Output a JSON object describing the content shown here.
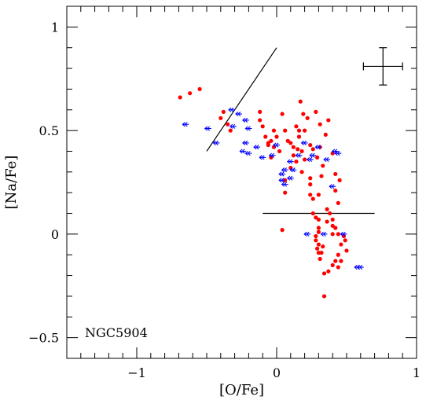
{
  "chart_data": {
    "type": "scatter",
    "annotation": "NGC5904",
    "xlabel": "[O/Fe]",
    "ylabel": "[Na/Fe]",
    "xlim": [
      -1.5,
      1.0
    ],
    "ylim": [
      -0.6,
      1.1
    ],
    "x_ticks": [
      {
        "value": -1,
        "label": "−1"
      },
      {
        "value": 0,
        "label": "0"
      },
      {
        "value": 1,
        "label": "1"
      }
    ],
    "y_ticks": [
      {
        "value": -0.5,
        "label": "−0.5"
      },
      {
        "value": 0,
        "label": "0"
      },
      {
        "value": 0.5,
        "label": "0.5"
      },
      {
        "value": 1,
        "label": "1"
      }
    ],
    "x_minor_step": 0.1,
    "y_minor_step": 0.1,
    "grid": false,
    "colors": {
      "detections": "#ff0000",
      "upper_limits": "#0000ff",
      "lines": "#000000"
    },
    "series": [
      {
        "marker": "filled-circle",
        "color": "#ff0000",
        "points": [
          [
            -0.69,
            0.66
          ],
          [
            -0.62,
            0.68
          ],
          [
            -0.55,
            0.7
          ],
          [
            -0.4,
            0.56
          ],
          [
            -0.38,
            0.59
          ],
          [
            -0.35,
            0.53
          ],
          [
            -0.33,
            0.5
          ],
          [
            -0.12,
            0.59
          ],
          [
            -0.12,
            0.55
          ],
          [
            -0.1,
            0.52
          ],
          [
            -0.08,
            0.47
          ],
          [
            -0.06,
            0.44
          ],
          [
            -0.04,
            0.45
          ],
          [
            -0.02,
            0.5
          ],
          [
            -0.02,
            0.42
          ],
          [
            0.0,
            0.47
          ],
          [
            0.02,
            0.4
          ],
          [
            -0.06,
            0.43
          ],
          [
            -0.04,
            0.37
          ],
          [
            0.04,
            0.58
          ],
          [
            0.06,
            0.5
          ],
          [
            0.08,
            0.45
          ],
          [
            0.1,
            0.44
          ],
          [
            0.1,
            0.32
          ],
          [
            0.12,
            0.42
          ],
          [
            0.12,
            0.38
          ],
          [
            0.14,
            0.52
          ],
          [
            0.14,
            0.35
          ],
          [
            0.15,
            0.41
          ],
          [
            0.16,
            0.5
          ],
          [
            0.16,
            0.47
          ],
          [
            0.17,
            0.64
          ],
          [
            0.18,
            0.4
          ],
          [
            0.18,
            0.3
          ],
          [
            0.19,
            0.58
          ],
          [
            0.2,
            0.5
          ],
          [
            0.2,
            0.36
          ],
          [
            0.22,
            0.56
          ],
          [
            0.24,
            0.43
          ],
          [
            0.24,
            0.27
          ],
          [
            0.26,
            0.41
          ],
          [
            0.28,
            0.59
          ],
          [
            0.29,
            0.37
          ],
          [
            0.31,
            0.53
          ],
          [
            0.31,
            0.42
          ],
          [
            0.33,
            0.33
          ],
          [
            0.35,
            0.48
          ],
          [
            0.37,
            0.55
          ],
          [
            0.4,
            0.39
          ],
          [
            0.42,
            0.29
          ],
          [
            0.45,
            0.26
          ],
          [
            0.26,
            0.17
          ],
          [
            0.06,
            0.26
          ],
          [
            0.06,
            0.2
          ],
          [
            0.24,
            0.24
          ],
          [
            0.24,
            0.19
          ],
          [
            0.3,
            0.19
          ],
          [
            0.32,
            0.28
          ],
          [
            0.42,
            0.21
          ],
          [
            0.44,
            0.15
          ],
          [
            0.36,
            0.12
          ],
          [
            0.38,
            0.1
          ],
          [
            0.26,
            0.1
          ],
          [
            0.28,
            0.08
          ],
          [
            0.3,
            0.07
          ],
          [
            0.36,
            0.06
          ],
          [
            0.4,
            0.07
          ],
          [
            0.4,
            0.04
          ],
          [
            0.42,
            0.03
          ],
          [
            0.4,
            0.0
          ],
          [
            0.44,
            0.0
          ],
          [
            0.3,
            0.03
          ],
          [
            0.3,
            0.01
          ],
          [
            0.28,
            -0.01
          ],
          [
            0.28,
            -0.03
          ],
          [
            0.3,
            -0.05
          ],
          [
            0.29,
            -0.07
          ],
          [
            0.3,
            -0.09
          ],
          [
            0.33,
            -0.06
          ],
          [
            0.46,
            -0.05
          ],
          [
            0.48,
            -0.01
          ],
          [
            0.49,
            -0.03
          ],
          [
            0.5,
            -0.08
          ],
          [
            0.44,
            -0.1
          ],
          [
            0.42,
            -0.13
          ],
          [
            0.4,
            -0.15
          ],
          [
            0.37,
            -0.18
          ],
          [
            0.34,
            -0.19
          ],
          [
            0.32,
            -0.09
          ],
          [
            0.31,
            -0.12
          ],
          [
            0.46,
            -0.13
          ],
          [
            0.44,
            -0.16
          ],
          [
            0.34,
            -0.3
          ],
          [
            0.04,
            0.02
          ]
        ]
      },
      {
        "marker": "arrow-left-double",
        "color": "#0000ff",
        "points": [
          [
            -0.65,
            0.53
          ],
          [
            -0.49,
            0.51
          ],
          [
            -0.43,
            0.44
          ],
          [
            -0.32,
            0.6
          ],
          [
            -0.31,
            0.52
          ],
          [
            -0.27,
            0.58
          ],
          [
            -0.22,
            0.55
          ],
          [
            -0.2,
            0.51
          ],
          [
            -0.22,
            0.44
          ],
          [
            -0.24,
            0.4
          ],
          [
            -0.2,
            0.39
          ],
          [
            -0.14,
            0.42
          ],
          [
            -0.1,
            0.37
          ],
          [
            -0.03,
            0.38
          ],
          [
            0.0,
            0.43
          ],
          [
            0.06,
            0.31
          ],
          [
            0.04,
            0.26
          ],
          [
            0.04,
            0.29
          ],
          [
            0.06,
            0.24
          ],
          [
            0.1,
            0.27
          ],
          [
            0.12,
            0.31
          ],
          [
            0.1,
            0.35
          ],
          [
            0.16,
            0.38
          ],
          [
            0.2,
            0.44
          ],
          [
            0.24,
            0.36
          ],
          [
            0.26,
            0.38
          ],
          [
            0.3,
            0.42
          ],
          [
            0.36,
            0.36
          ],
          [
            0.42,
            0.4
          ],
          [
            0.44,
            0.39
          ],
          [
            0.4,
            0.23
          ],
          [
            0.22,
            0.0
          ],
          [
            0.34,
            0.0
          ],
          [
            0.48,
            0.0
          ],
          [
            0.58,
            -0.16
          ],
          [
            0.6,
            -0.16
          ]
        ]
      }
    ],
    "lines": [
      {
        "x": [
          -0.5,
          0.0
        ],
        "y": [
          0.4,
          0.9
        ]
      },
      {
        "x": [
          -0.1,
          0.7
        ],
        "y": [
          0.1,
          0.1
        ]
      }
    ],
    "error_bar": {
      "x": 0.76,
      "y": 0.81,
      "xerr": 0.14,
      "yerr": 0.09
    }
  }
}
